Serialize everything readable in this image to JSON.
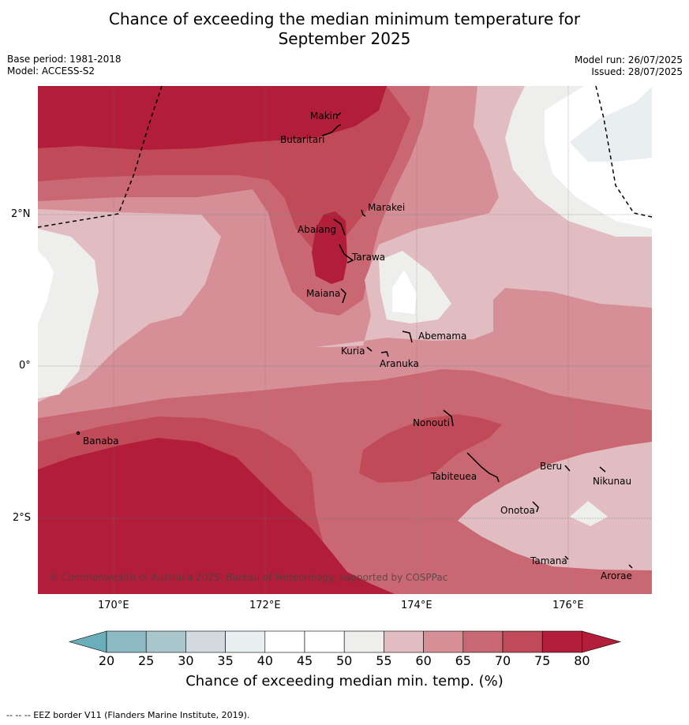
{
  "title_line1": "Chance of exceeding the median minimum temperature for",
  "title_line2": "September 2025",
  "base_period": "Base period: 1981-2018",
  "model": "Model: ACCESS-S2",
  "model_run": "Model run: 26/07/2025",
  "issued": "Issued: 28/07/2025",
  "copyright": "© Commonwealth of Australia 2025, Bureau of Meteorology, supported by COSPPac",
  "lat_labels": [
    "2°N",
    "0°",
    "2°S"
  ],
  "lon_labels": [
    "170°E",
    "172°E",
    "174°E",
    "176°E"
  ],
  "places": [
    "Makin",
    "Butaritari",
    "Marakei",
    "Abaiang",
    "Tarawa",
    "Maiana",
    "Abemama",
    "Kuria",
    "Aranuka",
    "Banaba",
    "Nonouti",
    "Tabiteuea",
    "Beru",
    "Nikunau",
    "Onotoa",
    "Tamana",
    "Arorae"
  ],
  "colorbar": {
    "ticks": [
      "20",
      "25",
      "30",
      "35",
      "40",
      "45",
      "50",
      "55",
      "60",
      "65",
      "70",
      "75",
      "80"
    ],
    "colors": [
      "#6aaebc",
      "#8dbac5",
      "#a8c6cc",
      "#d3d9dd",
      "#e9eef1",
      "#ffffff",
      "#ffffff",
      "#eeeeec",
      "#e1bcc0",
      "#d78f97",
      "#c96872",
      "#c04a57",
      "#b21d39"
    ],
    "title": "Chance of exceeding median min. temp. (%)"
  },
  "footer": "--  --  -- EEZ border V11 (Flanders Marine Institute, 2019)."
}
